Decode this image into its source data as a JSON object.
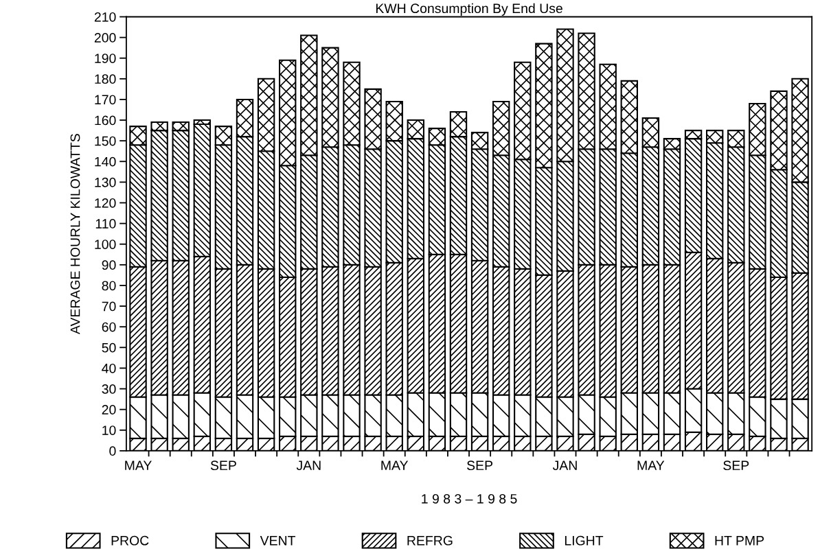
{
  "chart_data": {
    "type": "bar",
    "title": "KWH Consumption By End Use",
    "xlabel": "1 9 8 3 – 1 9 8 5",
    "ylabel": "AVERAGE HOURLY KILOWATTS",
    "categories": [
      "MAY",
      null,
      null,
      null,
      "SEP",
      null,
      null,
      null,
      "JAN",
      null,
      null,
      null,
      "MAY",
      null,
      null,
      null,
      "SEP",
      null,
      null,
      null,
      "JAN",
      null,
      null,
      null,
      "MAY",
      null,
      null,
      null,
      "SEP",
      null,
      null,
      null
    ],
    "stacked": true,
    "ylim": [
      0,
      210
    ],
    "yticks": [
      0,
      10,
      20,
      30,
      40,
      50,
      60,
      70,
      80,
      90,
      100,
      110,
      120,
      130,
      140,
      150,
      160,
      170,
      180,
      190,
      200,
      210
    ],
    "grid": false,
    "legend": "bottom",
    "series": [
      {
        "name": "PROC",
        "color": "#000000",
        "values": [
          6,
          6,
          6,
          7,
          6,
          6,
          6,
          7,
          7,
          7,
          7,
          7,
          7,
          7,
          7,
          7,
          7,
          7,
          7,
          7,
          7,
          8,
          7,
          8,
          8,
          8,
          9,
          8,
          8,
          7,
          6,
          6
        ]
      },
      {
        "name": "VENT",
        "color": "#000000",
        "values": [
          20,
          21,
          21,
          21,
          20,
          21,
          20,
          19,
          20,
          20,
          20,
          20,
          20,
          21,
          21,
          21,
          21,
          20,
          20,
          19,
          19,
          19,
          19,
          20,
          20,
          20,
          21,
          20,
          20,
          19,
          19,
          19
        ]
      },
      {
        "name": "REFRG",
        "color": "#000000",
        "values": [
          63,
          65,
          65,
          66,
          62,
          63,
          62,
          58,
          61,
          62,
          63,
          62,
          64,
          65,
          67,
          67,
          64,
          62,
          61,
          59,
          61,
          63,
          64,
          61,
          62,
          62,
          66,
          65,
          63,
          62,
          59,
          61
        ]
      },
      {
        "name": "LIGHT",
        "color": "#000000",
        "values": [
          59,
          63,
          63,
          64,
          60,
          62,
          57,
          54,
          55,
          58,
          58,
          57,
          59,
          58,
          53,
          57,
          54,
          54,
          53,
          52,
          53,
          56,
          56,
          55,
          57,
          56,
          55,
          56,
          56,
          55,
          52,
          44
        ]
      },
      {
        "name": "HT PMP",
        "color": "#000000",
        "values": [
          9,
          4,
          4,
          2,
          9,
          18,
          35,
          51,
          58,
          48,
          40,
          29,
          19,
          9,
          8,
          12,
          8,
          26,
          47,
          60,
          64,
          56,
          41,
          35,
          14,
          5,
          4,
          6,
          8,
          25,
          38,
          50
        ]
      }
    ]
  }
}
